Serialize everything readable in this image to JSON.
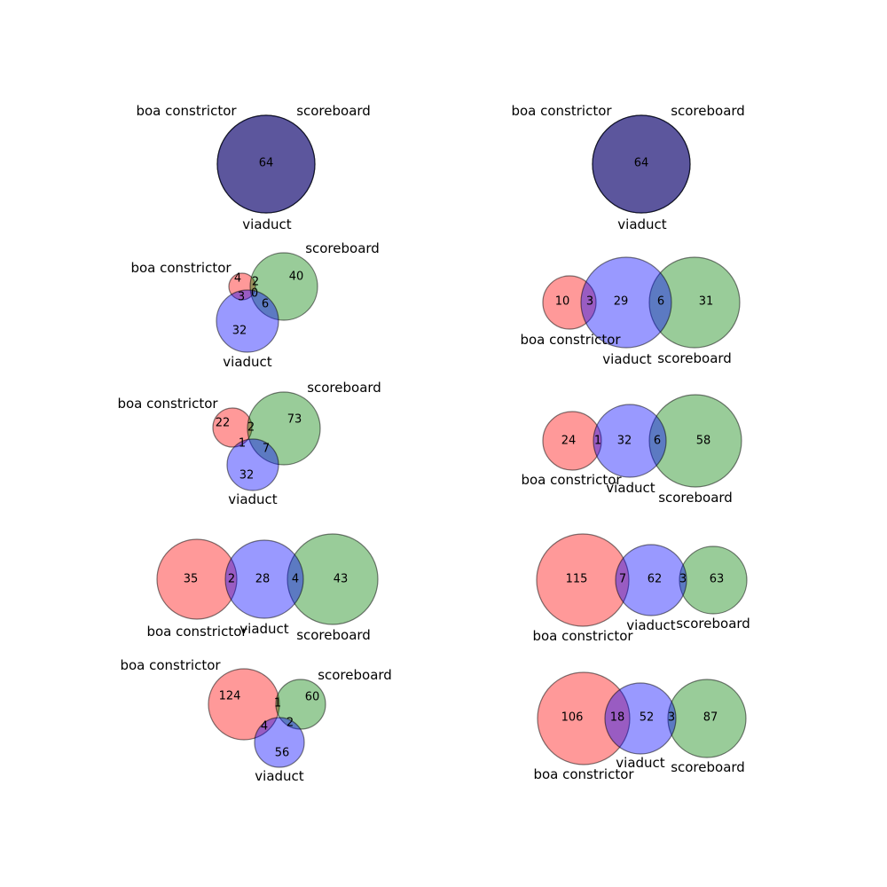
{
  "set_names": {
    "A": "boa constrictor",
    "B": "scoreboard",
    "C": "viaduct"
  },
  "colors": {
    "A": "#ff0000",
    "B": "#008000",
    "C": "#0000ff",
    "fill_opacity": 0.4
  },
  "chart_data": [
    {
      "id": "d1",
      "subsets": {
        "100": 0,
        "010": 0,
        "001": 0,
        "110": 0,
        "101": 0,
        "011": 0,
        "111": 64
      }
    },
    {
      "id": "d2",
      "subsets": {
        "100": 0,
        "010": 0,
        "001": 0,
        "110": 0,
        "101": 0,
        "011": 0,
        "111": 64
      }
    },
    {
      "id": "d3",
      "subsets": {
        "100": 4,
        "010": 40,
        "001": 32,
        "110": 2,
        "101": 3,
        "011": 6,
        "111": 0
      }
    },
    {
      "id": "d4",
      "subsets": {
        "100": 10,
        "010": 31,
        "001": 29,
        "110": 0,
        "101": 3,
        "011": 6,
        "111": 0
      }
    },
    {
      "id": "d5",
      "subsets": {
        "100": 22,
        "010": 73,
        "001": 32,
        "110": 2,
        "101": 1,
        "011": 7,
        "111": 0
      }
    },
    {
      "id": "d6",
      "subsets": {
        "100": 24,
        "010": 58,
        "001": 32,
        "110": 0,
        "101": 1,
        "011": 6,
        "111": 0
      }
    },
    {
      "id": "d7",
      "subsets": {
        "100": 35,
        "010": 43,
        "001": 28,
        "110": 0,
        "101": 2,
        "011": 4,
        "111": 0
      }
    },
    {
      "id": "d8",
      "subsets": {
        "100": 115,
        "010": 63,
        "001": 62,
        "110": 0,
        "101": 7,
        "011": 3,
        "111": 0
      }
    },
    {
      "id": "d9",
      "subsets": {
        "100": 124,
        "010": 60,
        "001": 56,
        "110": 1,
        "101": 4,
        "011": 2,
        "111": 0
      }
    },
    {
      "id": "d10",
      "subsets": {
        "100": 106,
        "010": 87,
        "001": 52,
        "110": 0,
        "101": 18,
        "011": 3,
        "111": 0
      }
    }
  ]
}
